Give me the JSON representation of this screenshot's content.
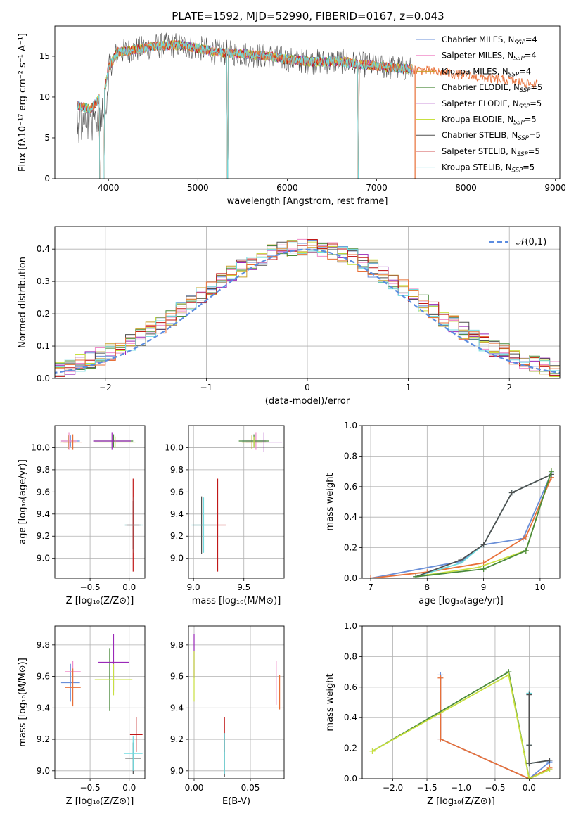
{
  "figure_title": "PLATE=1592, MJD=52990, FIBERID=0167, z=0.043",
  "colors": [
    "#6a8fd8",
    "#f08cc8",
    "#c8a02a",
    "#4a8a3a",
    "#9a28b8",
    "#c8e040",
    "#505050",
    "#c01818",
    "#70dce0",
    "#e87038"
  ],
  "chart_data": [
    {
      "id": "spectrum",
      "type": "line",
      "title": "PLATE=1592, MJD=52990, FIBERID=0167, z=0.043",
      "xlabel": "wavelength [Angstrom, rest frame]",
      "ylabel": "Flux [fλ10⁻¹⁷ erg cm⁻² s⁻¹ A⁻¹]",
      "xlim": [
        3400,
        9050
      ],
      "ylim": [
        0,
        18.7
      ],
      "xticks": [
        4000,
        5000,
        6000,
        7000,
        8000,
        9000
      ],
      "yticks": [
        0,
        5,
        10,
        15
      ],
      "grid": false,
      "legend_position": "top-right",
      "legend": [
        "Chabrier MILES, NSSP=4",
        "Salpeter MILES, NSSP=4",
        "Kroupa MILES, NSSP=4",
        "Chabrier ELODIE, NSSP=5",
        "Salpeter ELODIE, NSSP=5",
        "Kroupa ELODIE, NSSP=5",
        "Chabrier STELIB, NSSP=5",
        "Salpeter STELIB, NSSP=5",
        "Kroupa STELIB, NSSP=5"
      ],
      "continuum": [
        [
          3650,
          9.0
        ],
        [
          3800,
          8.5
        ],
        [
          3950,
          10.5
        ],
        [
          4000,
          13.5
        ],
        [
          4100,
          15.5
        ],
        [
          4300,
          15.8
        ],
        [
          4500,
          16.2
        ],
        [
          4800,
          16.4
        ],
        [
          5000,
          16.0
        ],
        [
          5200,
          15.5
        ],
        [
          5500,
          15.3
        ],
        [
          5800,
          15.0
        ],
        [
          6000,
          14.6
        ],
        [
          6300,
          14.3
        ],
        [
          6600,
          14.4
        ],
        [
          6800,
          14.0
        ],
        [
          7200,
          13.6
        ],
        [
          7600,
          13.2
        ],
        [
          8000,
          12.6
        ],
        [
          8500,
          12.0
        ],
        [
          8800,
          11.5
        ]
      ],
      "observed_wavelength_range": [
        3650,
        8800
      ],
      "model_gaps": [
        [
          3900,
          3950
        ],
        [
          5330,
          5340
        ],
        [
          6790,
          6800
        ]
      ]
    },
    {
      "id": "residuals",
      "type": "step",
      "xlabel": "(data-model)/error",
      "ylabel": "Normed distribution",
      "xlim": [
        -2.5,
        2.5
      ],
      "ylim": [
        0,
        0.47
      ],
      "xticks": [
        -2,
        -1,
        0,
        1,
        2
      ],
      "yticks": [
        0.0,
        0.1,
        0.2,
        0.3,
        0.4
      ],
      "grid": true,
      "legend_position": "top-right",
      "legend": [
        "𝒩(0,1)"
      ],
      "reference": {
        "mean": 0,
        "sigma": 1,
        "style": "dashed",
        "color": "#5b8ce0"
      },
      "bin_width": 0.1
    },
    {
      "id": "age_vs_Z",
      "type": "errorbar",
      "xlabel": "Z [log₁₀(Z/Z⊙)]",
      "ylabel": "age  [log₁₀(age/yr)]",
      "xlim": [
        -0.95,
        0.2
      ],
      "ylim": [
        8.82,
        10.2
      ],
      "xticks": [
        -0.5,
        0.0
      ],
      "yticks": [
        9.0,
        9.2,
        9.4,
        9.6,
        9.8,
        10.0
      ],
      "grid": true,
      "points": [
        {
          "c": 0,
          "x": -0.75,
          "y": 10.06,
          "dx": 0.12,
          "dy": 0.05
        },
        {
          "c": 1,
          "x": -0.77,
          "y": 10.06,
          "dx": 0.1,
          "dy": 0.08
        },
        {
          "c": 2,
          "x": -0.78,
          "y": 10.05,
          "dx": 0.1,
          "dy": 0.06
        },
        {
          "c": 9,
          "x": -0.72,
          "y": 10.05,
          "dx": 0.12,
          "dy": 0.07
        },
        {
          "c": 3,
          "x": -0.2,
          "y": 10.06,
          "dx": 0.25,
          "dy": 0.06
        },
        {
          "c": 4,
          "x": -0.22,
          "y": 10.06,
          "dx": 0.24,
          "dy": 0.08
        },
        {
          "c": 5,
          "x": -0.18,
          "y": 10.05,
          "dx": 0.26,
          "dy": 0.05
        },
        {
          "c": 6,
          "x": 0.05,
          "y": 9.3,
          "dx": 0.1,
          "dy": 0.22
        },
        {
          "c": 7,
          "x": 0.05,
          "y": 9.3,
          "dx": 0.08,
          "dy": 0.42
        },
        {
          "c": 8,
          "x": 0.06,
          "y": 9.3,
          "dx": 0.12,
          "dy": 0.25
        }
      ]
    },
    {
      "id": "age_vs_mass",
      "type": "errorbar",
      "xlabel": "mass [log₁₀(M/M⊙)]",
      "ylabel": "",
      "xlim": [
        8.95,
        9.9
      ],
      "ylim": [
        8.82,
        10.2
      ],
      "xticks": [
        9.0,
        9.5
      ],
      "yticks": [
        9.0,
        9.2,
        9.4,
        9.6,
        9.8,
        10.0
      ],
      "grid": true,
      "points": [
        {
          "c": 0,
          "x": 9.6,
          "y": 10.06,
          "dx": 0.12,
          "dy": 0.05
        },
        {
          "c": 1,
          "x": 9.62,
          "y": 10.06,
          "dx": 0.1,
          "dy": 0.08
        },
        {
          "c": 2,
          "x": 9.58,
          "y": 10.05,
          "dx": 0.1,
          "dy": 0.06
        },
        {
          "c": 3,
          "x": 9.6,
          "y": 10.06,
          "dx": 0.15,
          "dy": 0.06
        },
        {
          "c": 4,
          "x": 9.7,
          "y": 10.05,
          "dx": 0.18,
          "dy": 0.09
        },
        {
          "c": 5,
          "x": 9.6,
          "y": 10.05,
          "dx": 0.12,
          "dy": 0.05
        },
        {
          "c": 6,
          "x": 9.08,
          "y": 9.3,
          "dx": 0.08,
          "dy": 0.26
        },
        {
          "c": 7,
          "x": 9.24,
          "y": 9.3,
          "dx": 0.08,
          "dy": 0.42
        },
        {
          "c": 8,
          "x": 9.1,
          "y": 9.3,
          "dx": 0.12,
          "dy": 0.25
        }
      ]
    },
    {
      "id": "weight_vs_age",
      "type": "line",
      "xlabel": "age  [log₁₀(age/yr)]",
      "ylabel": "mass weight",
      "xlim": [
        6.85,
        10.35
      ],
      "ylim": [
        0,
        1.0
      ],
      "xticks": [
        7,
        8,
        9,
        10
      ],
      "yticks": [
        0.0,
        0.2,
        0.4,
        0.6,
        0.8,
        1.0
      ],
      "grid": true,
      "series": [
        {
          "c": 0,
          "x": [
            7.0,
            8.6,
            9.0,
            9.7,
            10.2
          ],
          "y": [
            0.0,
            0.11,
            0.22,
            0.26,
            0.69
          ]
        },
        {
          "c": 9,
          "x": [
            7.0,
            8.0,
            9.0,
            9.75,
            10.2
          ],
          "y": [
            0.0,
            0.04,
            0.1,
            0.27,
            0.66
          ]
        },
        {
          "c": 5,
          "x": [
            7.8,
            8.9,
            9.75,
            10.2
          ],
          "y": [
            0.01,
            0.07,
            0.18,
            0.7
          ]
        },
        {
          "c": 8,
          "x": [
            7.8,
            8.6,
            9.0,
            9.5,
            10.2
          ],
          "y": [
            0.01,
            0.1,
            0.22,
            0.56,
            0.68
          ]
        },
        {
          "c": 6,
          "x": [
            7.8,
            8.6,
            9.0,
            9.5,
            10.2
          ],
          "y": [
            0.01,
            0.12,
            0.22,
            0.56,
            0.68
          ]
        },
        {
          "c": 3,
          "x": [
            7.8,
            9.0,
            9.75,
            10.2
          ],
          "y": [
            0.01,
            0.06,
            0.18,
            0.7
          ]
        }
      ]
    },
    {
      "id": "mass_vs_Z",
      "type": "errorbar",
      "xlabel": "Z [log₁₀(Z/Z⊙)]",
      "ylabel": "mass [log₁₀(M/M⊙)]",
      "xlim": [
        -0.95,
        0.2
      ],
      "ylim": [
        8.95,
        9.92
      ],
      "xticks": [
        -0.5,
        0.0
      ],
      "yticks": [
        9.0,
        9.2,
        9.4,
        9.6,
        9.8
      ],
      "grid": true,
      "points": [
        {
          "c": 0,
          "x": -0.75,
          "y": 9.56,
          "dx": 0.12,
          "dy": 0.12
        },
        {
          "c": 1,
          "x": -0.72,
          "y": 9.63,
          "dx": 0.1,
          "dy": 0.07
        },
        {
          "c": 9,
          "x": -0.72,
          "y": 9.53,
          "dx": 0.1,
          "dy": 0.12
        },
        {
          "c": 3,
          "x": -0.25,
          "y": 9.58,
          "dx": 0.18,
          "dy": 0.2
        },
        {
          "c": 4,
          "x": -0.2,
          "y": 9.69,
          "dx": 0.2,
          "dy": 0.18
        },
        {
          "c": 5,
          "x": -0.2,
          "y": 9.58,
          "dx": 0.24,
          "dy": 0.1
        },
        {
          "c": 6,
          "x": 0.05,
          "y": 9.08,
          "dx": 0.1,
          "dy": 0.1
        },
        {
          "c": 7,
          "x": 0.09,
          "y": 9.23,
          "dx": 0.08,
          "dy": 0.11
        },
        {
          "c": 8,
          "x": 0.05,
          "y": 9.11,
          "dx": 0.12,
          "dy": 0.11
        }
      ]
    },
    {
      "id": "mass_vs_ebv",
      "type": "errorbar",
      "xlabel": "E(B-V)",
      "ylabel": "",
      "xlim": [
        -0.005,
        0.08
      ],
      "ylim": [
        8.95,
        9.92
      ],
      "xticks": [
        0.0,
        0.05
      ],
      "yticks": [
        9.0,
        9.2,
        9.4,
        9.6,
        9.8
      ],
      "grid": true,
      "points": [
        {
          "c": 4,
          "x": 0.0,
          "y": 9.73,
          "dx": 0,
          "dy": 0.14
        },
        {
          "c": 5,
          "x": 0.0,
          "y": 9.6,
          "dx": 0,
          "dy": 0.16
        },
        {
          "c": 6,
          "x": 0.027,
          "y": 9.1,
          "dx": 0,
          "dy": 0.14
        },
        {
          "c": 7,
          "x": 0.027,
          "y": 9.23,
          "dx": 0,
          "dy": 0.11
        },
        {
          "c": 8,
          "x": 0.027,
          "y": 9.11,
          "dx": 0,
          "dy": 0.13
        },
        {
          "c": 1,
          "x": 0.073,
          "y": 9.56,
          "dx": 0,
          "dy": 0.14
        },
        {
          "c": 9,
          "x": 0.076,
          "y": 9.5,
          "dx": 0,
          "dy": 0.11
        }
      ]
    },
    {
      "id": "weight_vs_Z",
      "type": "line",
      "xlabel": "Z [log₁₀(Z/Z⊙)]",
      "ylabel": "mass weight",
      "xlim": [
        -2.45,
        0.45
      ],
      "ylim": [
        0,
        1.0
      ],
      "xticks": [
        -2.0,
        -1.5,
        -1.0,
        -0.5,
        0.0
      ],
      "yticks": [
        0.0,
        0.2,
        0.4,
        0.6,
        0.8,
        1.0
      ],
      "grid": true,
      "series": [
        {
          "c": 0,
          "x": [
            -1.3,
            -1.3,
            0.0,
            0.0,
            0.3,
            0.3
          ],
          "y": [
            0.68,
            0.26,
            0.0,
            0.0,
            0.11,
            0.12
          ]
        },
        {
          "c": 9,
          "x": [
            -1.3,
            -1.3,
            0.0,
            0.0,
            0.3
          ],
          "y": [
            0.66,
            0.26,
            0.0,
            0.0,
            0.07
          ]
        },
        {
          "c": 3,
          "x": [
            -2.3,
            -0.3,
            0.0,
            0.3
          ],
          "y": [
            0.18,
            0.7,
            0.0,
            0.06
          ]
        },
        {
          "c": 5,
          "x": [
            -2.3,
            -0.3,
            0.0,
            0.3
          ],
          "y": [
            0.18,
            0.68,
            0.0,
            0.06
          ]
        },
        {
          "c": 8,
          "x": [
            0.0,
            0.0,
            0.0,
            0.3
          ],
          "y": [
            0.56,
            0.22,
            0.1,
            0.12
          ]
        },
        {
          "c": 6,
          "x": [
            0.0,
            0.0,
            0.0,
            0.3
          ],
          "y": [
            0.55,
            0.22,
            0.1,
            0.12
          ]
        }
      ]
    }
  ]
}
